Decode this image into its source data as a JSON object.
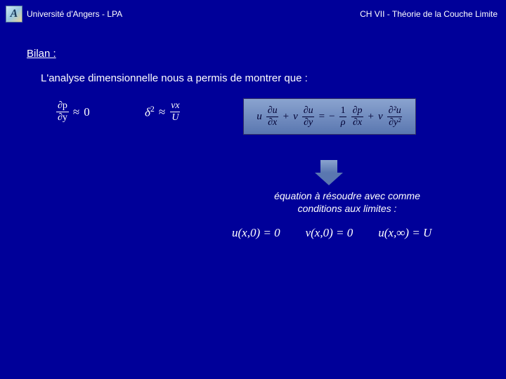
{
  "colors": {
    "background": "#000099",
    "text": "#ffffff",
    "box_gradient_top": "#8aa3cf",
    "box_gradient_bottom": "#5a77b0",
    "box_text": "#000033"
  },
  "typography": {
    "body_font": "Verdana",
    "math_font": "Times New Roman",
    "header_fontsize": 12,
    "section_fontsize": 15,
    "body_fontsize": 15,
    "caption_fontsize": 14,
    "bc_fontsize": 17
  },
  "header": {
    "logo_letter": "A",
    "university": "Université d'Angers - LPA",
    "chapter": "CH VII - Théorie de la Couche Limite"
  },
  "section_title": "Bilan :",
  "body_text": "L'analyse dimensionnelle nous a permis de montrer que :",
  "equations": {
    "eq1": {
      "lhs_num": "∂p",
      "lhs_den": "∂y",
      "rel": "≈",
      "rhs": "0"
    },
    "eq2": {
      "lhs": "δ",
      "lhs_exp": "2",
      "rel": "≈",
      "rhs_num": "νx",
      "rhs_den": "U"
    },
    "eq3": {
      "t1_coef": "u",
      "t1_num": "∂u",
      "t1_den": "∂x",
      "plus1": "+",
      "t2_coef": "v",
      "t2_num": "∂u",
      "t2_den": "∂y",
      "eq": "=",
      "neg": "−",
      "t3_num": "1",
      "t3_den": "ρ",
      "t4_num": "∂p",
      "t4_den": "∂x",
      "plus2": "+",
      "t5_coef": "ν",
      "t5_num": "∂²u",
      "t5_den": "∂y²"
    }
  },
  "caption_line1": "équation à résoudre avec comme",
  "caption_line2": "conditions aux limites :",
  "boundary_conditions": {
    "bc1": "u(x,0) = 0",
    "bc2": "v(x,0) = 0",
    "bc3": "u(x,∞) = U"
  }
}
